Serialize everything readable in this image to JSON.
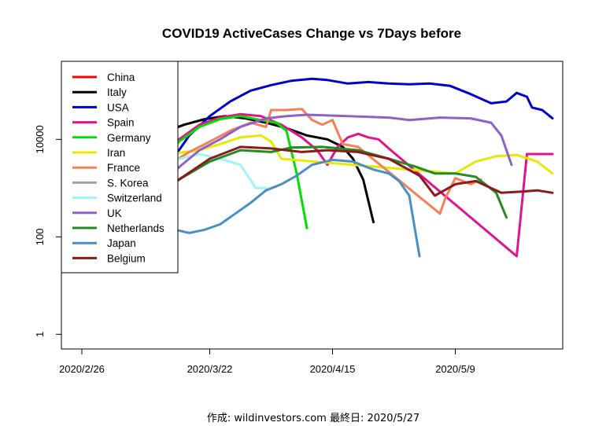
{
  "chart_data": {
    "type": "line",
    "title": "COVID19 ActiveCases Change vs 7Days before",
    "caption": "作成: wildinvestors.com 最終日: 2020/5/27",
    "xlabel": "",
    "ylabel": "",
    "y_scale": "log",
    "ylim": [
      0.5,
      400000
    ],
    "xlim": [
      "2020-02-22",
      "2020-05-30"
    ],
    "x_ticks": [
      {
        "date": "2020-02-26",
        "label": "2020/2/26"
      },
      {
        "date": "2020-03-22",
        "label": "2020/3/22"
      },
      {
        "date": "2020-04-15",
        "label": "2020/4/15"
      },
      {
        "date": "2020-05-09",
        "label": "2020/5/9"
      }
    ],
    "y_ticks": [
      {
        "value": 1,
        "label": "1"
      },
      {
        "value": 100,
        "label": "100"
      },
      {
        "value": 10000,
        "label": "10000"
      }
    ],
    "grid": false,
    "legend_position": "top-left",
    "series": [
      {
        "name": "China",
        "color": "#ff0000",
        "points": []
      },
      {
        "name": "Italy",
        "color": "#000000",
        "points": [
          [
            "2020-03-01",
            3000
          ],
          [
            "2020-03-05",
            5000
          ],
          [
            "2020-03-09",
            9000
          ],
          [
            "2020-03-13",
            14000
          ],
          [
            "2020-03-17",
            20000
          ],
          [
            "2020-03-21",
            26000
          ],
          [
            "2020-03-25",
            30000
          ],
          [
            "2020-03-29",
            27000
          ],
          [
            "2020-04-02",
            22000
          ],
          [
            "2020-04-06",
            17000
          ],
          [
            "2020-04-10",
            12000
          ],
          [
            "2020-04-14",
            10000
          ],
          [
            "2020-04-17",
            7000
          ],
          [
            "2020-04-19",
            4000
          ],
          [
            "2020-04-21",
            1500
          ],
          [
            "2020-04-23",
            200
          ]
        ]
      },
      {
        "name": "USA",
        "color": "#0000cd",
        "points": [
          [
            "2020-03-06",
            150
          ],
          [
            "2020-03-10",
            800
          ],
          [
            "2020-03-14",
            3000
          ],
          [
            "2020-03-18",
            12000
          ],
          [
            "2020-03-22",
            30000
          ],
          [
            "2020-03-26",
            60000
          ],
          [
            "2020-03-30",
            100000
          ],
          [
            "2020-04-03",
            130000
          ],
          [
            "2020-04-07",
            160000
          ],
          [
            "2020-04-11",
            175000
          ],
          [
            "2020-04-14",
            165000
          ],
          [
            "2020-04-18",
            140000
          ],
          [
            "2020-04-22",
            150000
          ],
          [
            "2020-04-26",
            140000
          ],
          [
            "2020-04-30",
            135000
          ],
          [
            "2020-05-04",
            140000
          ],
          [
            "2020-05-08",
            125000
          ],
          [
            "2020-05-12",
            85000
          ],
          [
            "2020-05-16",
            55000
          ],
          [
            "2020-05-19",
            60000
          ],
          [
            "2020-05-21",
            90000
          ],
          [
            "2020-05-23",
            75000
          ],
          [
            "2020-05-24",
            45000
          ],
          [
            "2020-05-26",
            40000
          ],
          [
            "2020-05-28",
            27000
          ]
        ]
      },
      {
        "name": "Spain",
        "color": "#e0148f",
        "points": [
          [
            "2020-03-03",
            200
          ],
          [
            "2020-03-08",
            1000
          ],
          [
            "2020-03-12",
            3500
          ],
          [
            "2020-03-16",
            10000
          ],
          [
            "2020-03-20",
            20000
          ],
          [
            "2020-03-24",
            28000
          ],
          [
            "2020-03-28",
            33000
          ],
          [
            "2020-04-01",
            30000
          ],
          [
            "2020-04-05",
            20000
          ],
          [
            "2020-04-09",
            11000
          ],
          [
            "2020-04-12",
            6000
          ],
          [
            "2020-04-14",
            3000
          ],
          [
            "2020-04-16",
            7000
          ],
          [
            "2020-04-18",
            11000
          ],
          [
            "2020-04-20",
            13000
          ],
          [
            "2020-04-22",
            11000
          ],
          [
            "2020-04-24",
            10000
          ],
          [
            "2020-04-26",
            6500
          ],
          [
            "2020-05-21",
            40
          ],
          [
            "2020-05-23",
            5000
          ],
          [
            "2020-05-24",
            5000
          ],
          [
            "2020-05-28",
            5000
          ]
        ]
      },
      {
        "name": "Germany",
        "color": "#00e000",
        "points": [
          [
            "2020-03-03",
            150
          ],
          [
            "2020-03-08",
            700
          ],
          [
            "2020-03-12",
            3000
          ],
          [
            "2020-03-16",
            9000
          ],
          [
            "2020-03-20",
            18000
          ],
          [
            "2020-03-24",
            26000
          ],
          [
            "2020-03-28",
            30000
          ],
          [
            "2020-04-01",
            25000
          ],
          [
            "2020-04-04",
            22000
          ],
          [
            "2020-04-06",
            15000
          ],
          [
            "2020-04-08",
            2000
          ],
          [
            "2020-04-10",
            150
          ]
        ]
      },
      {
        "name": "Iran",
        "color": "#e8e800",
        "points": [
          [
            "2020-02-26",
            3000
          ],
          [
            "2020-03-02",
            3500
          ],
          [
            "2020-03-08",
            4500
          ],
          [
            "2020-03-14",
            5000
          ],
          [
            "2020-03-20",
            6000
          ],
          [
            "2020-03-24",
            8000
          ],
          [
            "2020-03-28",
            11000
          ],
          [
            "2020-04-01",
            12000
          ],
          [
            "2020-04-03",
            9000
          ],
          [
            "2020-04-05",
            4000
          ],
          [
            "2020-05-09",
            2000
          ],
          [
            "2020-05-13",
            3500
          ],
          [
            "2020-05-17",
            4500
          ],
          [
            "2020-05-21",
            4800
          ],
          [
            "2020-05-25",
            3500
          ],
          [
            "2020-05-28",
            2000
          ]
        ]
      },
      {
        "name": "France",
        "color": "#f58058",
        "points": [
          [
            "2020-03-06",
            200
          ],
          [
            "2020-03-10",
            800
          ],
          [
            "2020-03-14",
            3000
          ],
          [
            "2020-03-18",
            5500
          ],
          [
            "2020-03-22",
            9000
          ],
          [
            "2020-03-26",
            15000
          ],
          [
            "2020-03-30",
            22000
          ],
          [
            "2020-04-02",
            18000
          ],
          [
            "2020-04-03",
            40000
          ],
          [
            "2020-04-06",
            40000
          ],
          [
            "2020-04-09",
            42000
          ],
          [
            "2020-04-11",
            25000
          ],
          [
            "2020-04-13",
            20000
          ],
          [
            "2020-04-15",
            25000
          ],
          [
            "2020-04-17",
            8000
          ],
          [
            "2020-04-20",
            7000
          ],
          [
            "2020-05-06",
            300
          ],
          [
            "2020-05-07",
            600
          ],
          [
            "2020-05-09",
            1600
          ],
          [
            "2020-05-12",
            1200
          ],
          [
            "2020-05-14",
            1500
          ]
        ]
      },
      {
        "name": "S. Korea",
        "color": "#a0a0a0",
        "points": []
      },
      {
        "name": "Switzerland",
        "color": "#a0f4f8",
        "points": [
          [
            "2020-03-02",
            400
          ],
          [
            "2020-03-08",
            2000
          ],
          [
            "2020-03-14",
            3500
          ],
          [
            "2020-03-20",
            5000
          ],
          [
            "2020-03-24",
            4000
          ],
          [
            "2020-03-28",
            3000
          ],
          [
            "2020-03-31",
            1000
          ],
          [
            "2020-04-02",
            1000
          ]
        ]
      },
      {
        "name": "UK",
        "color": "#9060c8",
        "points": [
          [
            "2020-03-04",
            200
          ],
          [
            "2020-03-10",
            700
          ],
          [
            "2020-03-14",
            1800
          ],
          [
            "2020-03-20",
            6000
          ],
          [
            "2020-03-24",
            10000
          ],
          [
            "2020-03-28",
            18000
          ],
          [
            "2020-04-02",
            27000
          ],
          [
            "2020-04-06",
            30000
          ],
          [
            "2020-04-10",
            32000
          ],
          [
            "2020-04-18",
            30000
          ],
          [
            "2020-04-26",
            28000
          ],
          [
            "2020-04-30",
            25000
          ],
          [
            "2020-05-06",
            28000
          ],
          [
            "2020-05-12",
            27000
          ],
          [
            "2020-05-16",
            22000
          ],
          [
            "2020-05-18",
            12000
          ],
          [
            "2020-05-19",
            6000
          ],
          [
            "2020-05-20",
            3000
          ]
        ]
      },
      {
        "name": "Netherlands",
        "color": "#228b22",
        "points": [
          [
            "2020-03-04",
            150
          ],
          [
            "2020-03-10",
            500
          ],
          [
            "2020-03-16",
            1500
          ],
          [
            "2020-03-22",
            3500
          ],
          [
            "2020-03-28",
            6000
          ],
          [
            "2020-04-03",
            5500
          ],
          [
            "2020-04-07",
            6800
          ],
          [
            "2020-04-13",
            7000
          ],
          [
            "2020-04-20",
            6000
          ],
          [
            "2020-04-26",
            4000
          ],
          [
            "2020-05-01",
            2800
          ],
          [
            "2020-05-05",
            2000
          ],
          [
            "2020-05-09",
            2000
          ],
          [
            "2020-05-13",
            1700
          ],
          [
            "2020-05-17",
            800
          ],
          [
            "2020-05-19",
            250
          ]
        ]
      },
      {
        "name": "Japan",
        "color": "#4a8ec8",
        "points": [
          [
            "2020-02-26",
            250
          ],
          [
            "2020-03-02",
            250
          ],
          [
            "2020-03-06",
            220
          ],
          [
            "2020-03-10",
            180
          ],
          [
            "2020-03-14",
            150
          ],
          [
            "2020-03-18",
            120
          ],
          [
            "2020-03-21",
            140
          ],
          [
            "2020-03-24",
            180
          ],
          [
            "2020-03-27",
            300
          ],
          [
            "2020-03-30",
            500
          ],
          [
            "2020-04-02",
            900
          ],
          [
            "2020-04-05",
            1200
          ],
          [
            "2020-04-08",
            1800
          ],
          [
            "2020-04-11",
            3000
          ],
          [
            "2020-04-15",
            3800
          ],
          [
            "2020-04-19",
            3500
          ],
          [
            "2020-04-23",
            2400
          ],
          [
            "2020-04-26",
            2000
          ],
          [
            "2020-04-28",
            1400
          ],
          [
            "2020-04-30",
            700
          ],
          [
            "2020-05-02",
            40
          ]
        ]
      },
      {
        "name": "Belgium",
        "color": "#8b1a1a",
        "points": [
          [
            "2020-03-04",
            100
          ],
          [
            "2020-03-10",
            400
          ],
          [
            "2020-03-16",
            1500
          ],
          [
            "2020-03-22",
            4000
          ],
          [
            "2020-03-28",
            7000
          ],
          [
            "2020-04-03",
            6500
          ],
          [
            "2020-04-09",
            5500
          ],
          [
            "2020-04-14",
            6000
          ],
          [
            "2020-04-20",
            5500
          ],
          [
            "2020-04-26",
            4000
          ],
          [
            "2020-05-02",
            1800
          ],
          [
            "2020-05-05",
            700
          ],
          [
            "2020-05-09",
            1200
          ],
          [
            "2020-05-13",
            1400
          ],
          [
            "2020-05-18",
            800
          ],
          [
            "2020-05-22",
            850
          ],
          [
            "2020-05-25",
            900
          ],
          [
            "2020-05-28",
            800
          ]
        ]
      }
    ]
  }
}
